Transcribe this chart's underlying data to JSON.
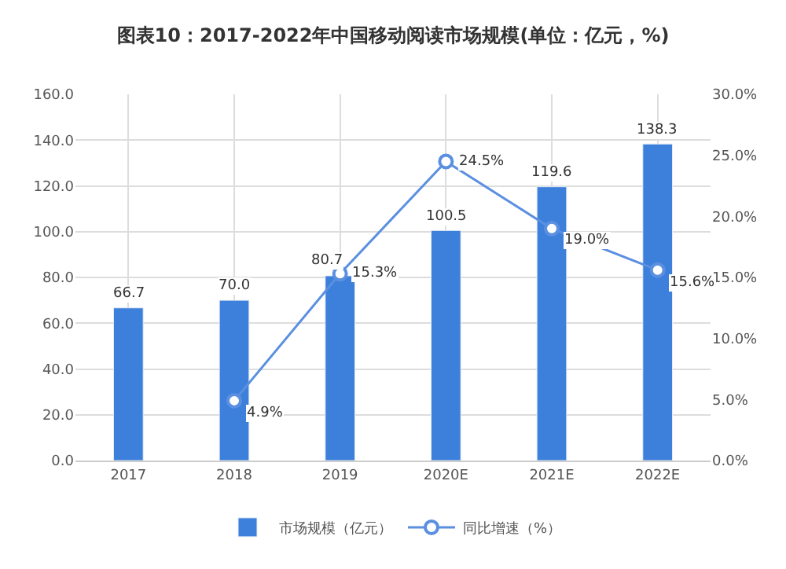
{
  "chart_data": {
    "type": "bar",
    "title": "图表10：2017-2022年中国移动阅读市场规模(单位：亿元，%)",
    "categories": [
      "2017",
      "2018",
      "2019",
      "2020E",
      "2021E",
      "2022E"
    ],
    "series": [
      {
        "name": "市场规模（亿元）",
        "color": "#3d80dc",
        "values": [
          66.7,
          70.0,
          80.7,
          100.5,
          119.6,
          138.3
        ],
        "value_labels": [
          "66.7",
          "70.0",
          "80.7",
          "100.5",
          "119.6",
          "138.3"
        ]
      },
      {
        "name": "同比增速（%）",
        "type": "line",
        "axis": "y2",
        "color": "#5b8fe0",
        "marker": "circle",
        "values": [
          null,
          4.9,
          15.3,
          24.5,
          19.0,
          15.6
        ],
        "value_labels": [
          null,
          "4.9%",
          "15.3%",
          "24.5%",
          "19.0%",
          "15.6%"
        ]
      }
    ],
    "ylim": [
      0,
      160
    ],
    "yticks": [
      {
        "value": 0,
        "label": "0.0"
      },
      {
        "value": 20,
        "label": "20.0"
      },
      {
        "value": 40,
        "label": "40.0"
      },
      {
        "value": 60,
        "label": "60.0"
      },
      {
        "value": 80,
        "label": "80.0"
      },
      {
        "value": 100,
        "label": "100.0"
      },
      {
        "value": 120,
        "label": "120.0"
      },
      {
        "value": 140,
        "label": "140.0"
      },
      {
        "value": 160,
        "label": "160.0"
      }
    ],
    "y2lim": [
      0,
      30
    ],
    "y2ticks": [
      {
        "value": 0,
        "label": "0.0%"
      },
      {
        "value": 5,
        "label": "5.0%"
      },
      {
        "value": 10,
        "label": "10.0%"
      },
      {
        "value": 15,
        "label": "15.0%"
      },
      {
        "value": 20,
        "label": "20.0%"
      },
      {
        "value": 25,
        "label": "25.0%"
      },
      {
        "value": 30,
        "label": "30.0%"
      }
    ],
    "grid": true,
    "legend": "bottom"
  }
}
